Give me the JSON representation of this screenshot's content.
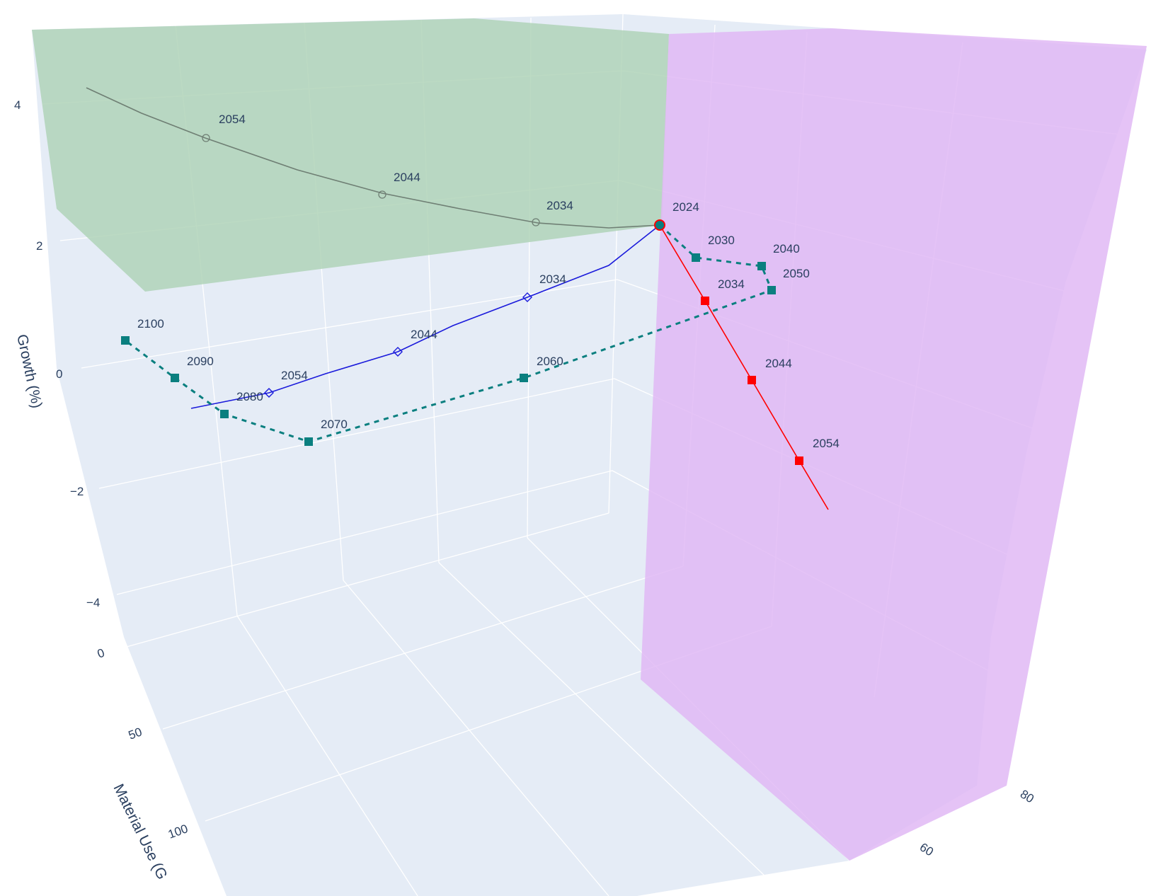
{
  "chart_data": {
    "type": "line",
    "subtype": "3d-scatter-lines",
    "colors": {
      "wall": "#e5ecf6",
      "grid": "#ffffff",
      "green_plane": "#b0d4b8",
      "purple_plane": "#e0b8f5",
      "gray_series": "#6f7f74",
      "blue_series": "#1a1adb",
      "red_series": "#ff0000",
      "teal_series": "#0a7f7f",
      "text": "#2a3f5f"
    },
    "axes": {
      "y": {
        "title": "Growth (%)",
        "ticks": [
          "4",
          "2",
          "0",
          "−2",
          "−4"
        ]
      },
      "x": {
        "title": "Material Use (G",
        "ticks": [
          "0",
          "50",
          "100"
        ]
      },
      "z": {
        "title": "",
        "ticks": [
          "60",
          "80"
        ]
      }
    },
    "planes": [
      {
        "name": "",
        "color": "green"
      },
      {
        "name": "",
        "color": "purple"
      }
    ],
    "series": [
      {
        "color": "gray",
        "marker": "circle-open",
        "line": "solid",
        "points": [
          {
            "label": "2024"
          },
          {
            "label": "2034"
          },
          {
            "label": "2044"
          },
          {
            "label": "2054"
          }
        ]
      },
      {
        "color": "blue",
        "marker": "diamond-open",
        "line": "solid",
        "points": [
          {
            "label": "2034"
          },
          {
            "label": "2044"
          },
          {
            "label": "2054"
          }
        ]
      },
      {
        "color": "red",
        "marker": "square",
        "line": "solid",
        "points": [
          {
            "label": "2034"
          },
          {
            "label": "2044"
          },
          {
            "label": "2054"
          }
        ]
      },
      {
        "color": "teal",
        "marker": "square",
        "line": "dashed",
        "points": [
          {
            "label": "2030"
          },
          {
            "label": "2040"
          },
          {
            "label": "2050"
          },
          {
            "label": "2060"
          },
          {
            "label": "2070"
          },
          {
            "label": "2080"
          },
          {
            "label": "2090"
          },
          {
            "label": "2100"
          }
        ]
      }
    ]
  }
}
